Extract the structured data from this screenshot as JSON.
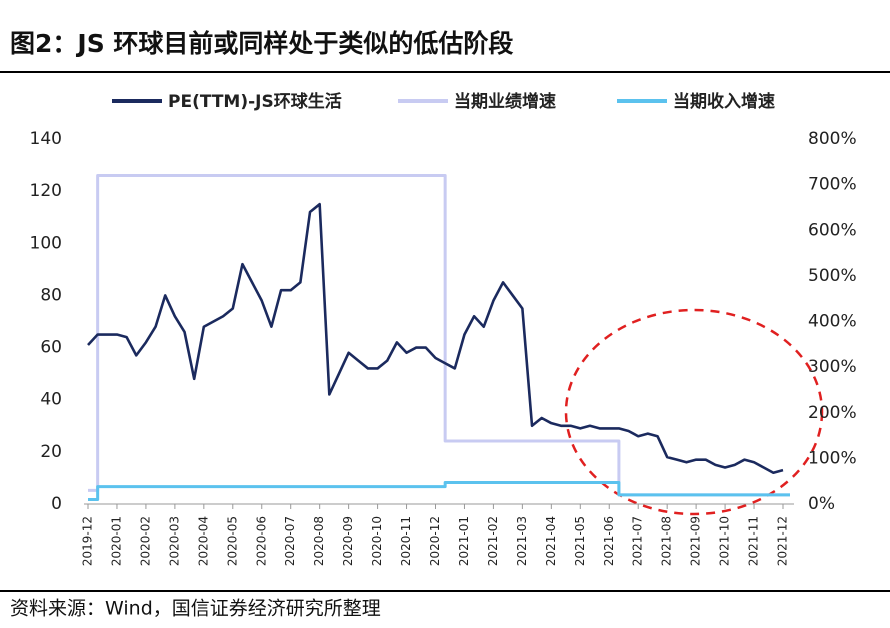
{
  "chart_data": {
    "type": "line",
    "title": "图2：JS 环球目前或同样处于类似的低估阶段",
    "source": "资料来源：Wind，国信证券经济研究所整理",
    "categories": [
      "2019-12",
      null,
      null,
      "2020-01",
      null,
      null,
      "2020-02",
      null,
      null,
      "2020-03",
      null,
      null,
      "2020-04",
      null,
      null,
      "2020-05",
      null,
      null,
      "2020-06",
      null,
      null,
      "2020-07",
      null,
      null,
      "2020-08",
      null,
      null,
      "2020-09",
      null,
      null,
      "2020-10",
      null,
      null,
      "2020-11",
      null,
      null,
      "2020-12",
      null,
      null,
      "2021-01",
      null,
      null,
      "2021-02",
      null,
      null,
      "2021-03",
      null,
      null,
      "2021-04",
      null,
      null,
      "2021-05",
      null,
      null,
      "2021-06",
      null,
      null,
      "2021-07",
      null,
      null,
      "2021-08",
      null,
      null,
      "2021-09",
      null,
      null,
      "2021-10",
      null,
      null,
      "2021-11",
      null,
      null,
      "2021-12"
    ],
    "series": [
      {
        "name": "PE(TTM)-JS环球生活",
        "color": "#1b2a5e",
        "axis": "y",
        "values": [
          61,
          65,
          65,
          65,
          64,
          57,
          62,
          68,
          80,
          72,
          66,
          48,
          68,
          70,
          72,
          75,
          92,
          85,
          78,
          68,
          82,
          82,
          85,
          112,
          115,
          42,
          50,
          58,
          55,
          52,
          52,
          55,
          62,
          58,
          60,
          60,
          56,
          54,
          52,
          65,
          72,
          68,
          78,
          85,
          80,
          75,
          30,
          33,
          31,
          30,
          30,
          29,
          30,
          29,
          29,
          29,
          28,
          26,
          27,
          26,
          18,
          17,
          16,
          17,
          17,
          15,
          14,
          15,
          17,
          16,
          14,
          12,
          13
        ]
      },
      {
        "name": "当期业绩增速",
        "color": "#c8cbf2",
        "axis": "y2",
        "steps": true,
        "values": [
          30,
          720,
          720,
          720,
          720,
          720,
          720,
          720,
          720,
          720,
          720,
          720,
          720,
          720,
          720,
          720,
          720,
          720,
          720,
          720,
          720,
          720,
          720,
          720,
          720,
          720,
          720,
          720,
          720,
          720,
          720,
          720,
          720,
          720,
          720,
          720,
          720,
          138,
          138,
          138,
          138,
          138,
          138,
          138,
          138,
          138,
          138,
          138,
          138,
          138,
          138,
          138,
          138,
          138,
          138,
          20,
          20,
          20,
          20,
          20,
          20,
          20,
          20,
          20,
          20,
          20,
          20,
          20,
          20,
          20,
          20,
          20,
          20
        ]
      },
      {
        "name": "当期收入增速",
        "color": "#5bc2ee",
        "axis": "y2",
        "steps": true,
        "values": [
          10,
          38,
          38,
          38,
          38,
          38,
          38,
          38,
          38,
          38,
          38,
          38,
          38,
          38,
          38,
          38,
          38,
          38,
          38,
          38,
          38,
          38,
          38,
          38,
          38,
          38,
          38,
          38,
          38,
          38,
          38,
          38,
          38,
          38,
          38,
          38,
          38,
          47,
          47,
          47,
          47,
          47,
          47,
          47,
          47,
          47,
          47,
          47,
          47,
          47,
          47,
          47,
          47,
          47,
          47,
          20,
          20,
          20,
          20,
          20,
          20,
          20,
          20,
          20,
          20,
          20,
          20,
          20,
          20,
          20,
          20,
          20,
          20
        ]
      }
    ],
    "ylim": [
      0,
      140
    ],
    "yticks": [
      0,
      20,
      40,
      60,
      80,
      100,
      120,
      140
    ],
    "y2lim": [
      0,
      800
    ],
    "y2ticks": [
      {
        "value": 0,
        "label": "0%"
      },
      {
        "value": 100,
        "label": "100%"
      },
      {
        "value": 200,
        "label": "200%"
      },
      {
        "value": 300,
        "label": "300%"
      },
      {
        "value": 400,
        "label": "400%"
      },
      {
        "value": 500,
        "label": "500%"
      },
      {
        "value": 600,
        "label": "600%"
      },
      {
        "value": 700,
        "label": "700%"
      },
      {
        "value": 800,
        "label": "800%"
      }
    ],
    "legend": "top"
  }
}
